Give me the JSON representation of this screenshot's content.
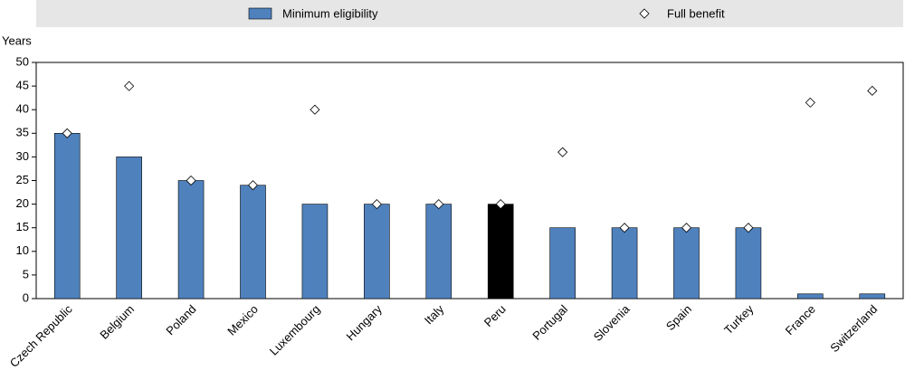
{
  "chart_data": {
    "type": "bar",
    "y_label": "Years",
    "categories": [
      "Czech Republic",
      "Belgium",
      "Poland",
      "Mexico",
      "Luxembourg",
      "Hungary",
      "Italy",
      "Peru",
      "Portugal",
      "Slovenia",
      "Spain",
      "Turkey",
      "France",
      "Switzerland"
    ],
    "series": [
      {
        "name": "Minimum eligibility",
        "type": "bar",
        "color": "#4f81bd",
        "colors": [
          "#4f81bd",
          "#4f81bd",
          "#4f81bd",
          "#4f81bd",
          "#4f81bd",
          "#4f81bd",
          "#4f81bd",
          "#000000",
          "#4f81bd",
          "#4f81bd",
          "#4f81bd",
          "#4f81bd",
          "#4f81bd",
          "#4f81bd"
        ],
        "values": [
          35,
          30,
          25,
          24,
          20,
          20,
          20,
          20,
          15,
          15,
          15,
          15,
          1,
          1
        ]
      },
      {
        "name": "Full benefit",
        "type": "scatter",
        "color": "#ffffff",
        "values": [
          35,
          45,
          25,
          24,
          40,
          20,
          20,
          20,
          31,
          15,
          15,
          15,
          41.5,
          44
        ]
      }
    ],
    "ylim": [
      0,
      50
    ],
    "yticks": [
      0,
      5,
      10,
      15,
      20,
      25,
      30,
      35,
      40,
      45,
      50
    ],
    "grid": false
  }
}
